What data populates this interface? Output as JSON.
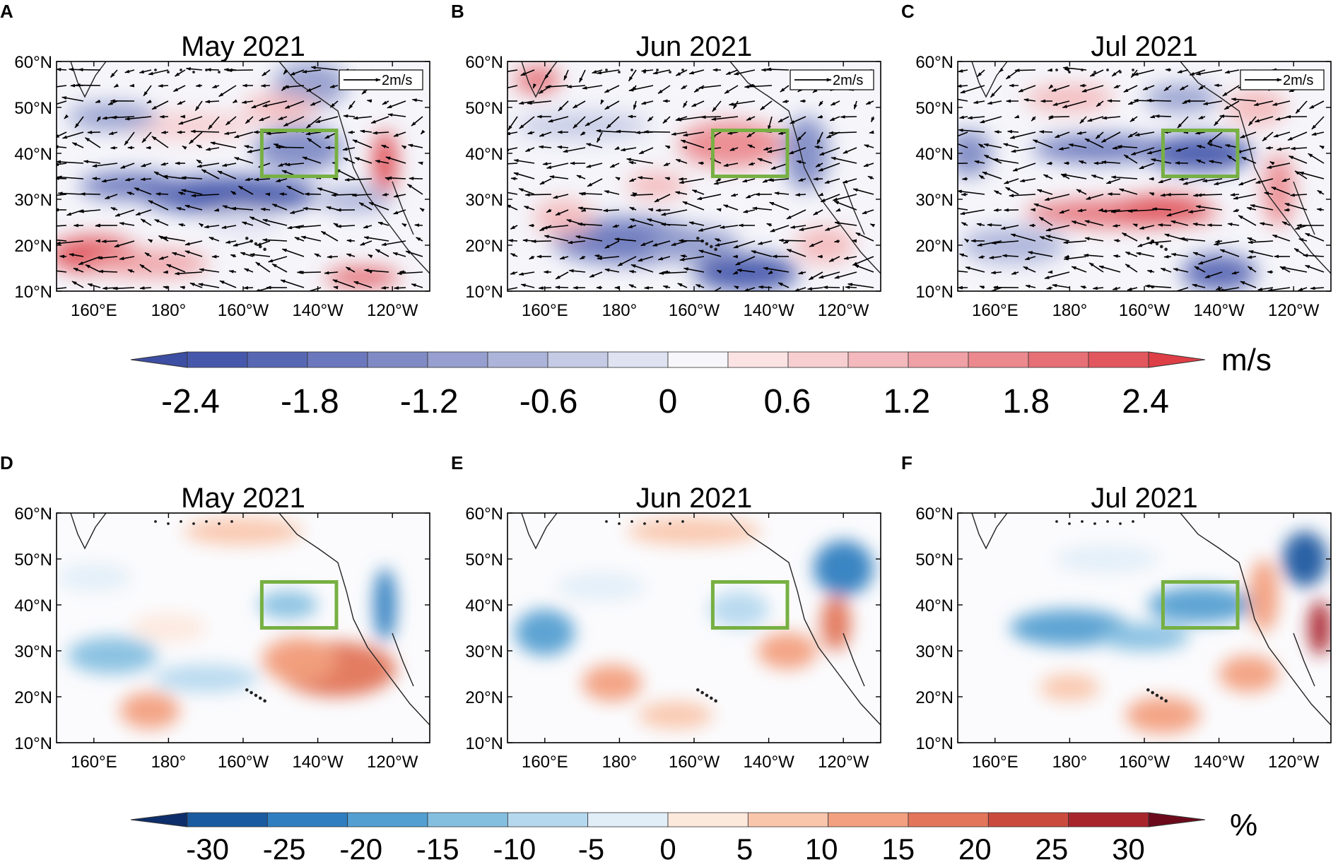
{
  "figure": {
    "rows": [
      {
        "variable": "wind",
        "colorbar": {
          "unit": "m/s",
          "tick_labels": [
            "-2.4",
            "-1.8",
            "-1.2",
            "-0.6",
            "0",
            "0.6",
            "1.2",
            "1.8",
            "2.4"
          ],
          "tick_values": [
            -2.4,
            -1.8,
            -1.2,
            -0.6,
            0,
            0.6,
            1.2,
            1.8,
            2.4
          ],
          "range": [
            -2.7,
            2.7
          ],
          "levels": 18,
          "colors": [
            "#3d4fa3",
            "#4758ac",
            "#5867b4",
            "#6b78bd",
            "#808bc5",
            "#969fcf",
            "#adb4da",
            "#c5cae5",
            "#dfe2f1",
            "#f7f7fb",
            "#fbe3e4",
            "#f7cfd1",
            "#f3b9bc",
            "#efa1a5",
            "#eb898e",
            "#e67076",
            "#e2575e",
            "#de3f46"
          ]
        },
        "panels": [
          {
            "letter": "A",
            "title": "May 2021",
            "legend_label": "2m/s"
          },
          {
            "letter": "B",
            "title": "Jun 2021",
            "legend_label": "2m/s"
          },
          {
            "letter": "C",
            "title": "Jul 2021",
            "legend_label": "2m/s"
          }
        ]
      },
      {
        "variable": "percent",
        "colorbar": {
          "unit": "%",
          "tick_labels": [
            "-30",
            "-25",
            "-20",
            "-15",
            "-10",
            "-5",
            "0",
            "5",
            "10",
            "15",
            "20",
            "25",
            "30"
          ],
          "tick_values": [
            -30,
            -25,
            -20,
            -15,
            -10,
            -5,
            0,
            5,
            10,
            15,
            20,
            25,
            30
          ],
          "range": [
            -35,
            35
          ],
          "levels": 14,
          "colors": [
            "#0d2e6b",
            "#1a5aa0",
            "#2f7ec0",
            "#549fd1",
            "#85bfe0",
            "#b5d8ee",
            "#e1eef8",
            "#fde8dc",
            "#f9c6ac",
            "#f2a080",
            "#e2755a",
            "#cb4a3e",
            "#a9252c",
            "#6c0a1c"
          ]
        },
        "panels": [
          {
            "letter": "D",
            "title": "May 2021"
          },
          {
            "letter": "E",
            "title": "Jun 2021"
          },
          {
            "letter": "F",
            "title": "Jul 2021"
          }
        ]
      }
    ],
    "map_axes": {
      "lat_labels": [
        "60°N",
        "50°N",
        "40°N",
        "30°N",
        "20°N",
        "10°N"
      ],
      "lat_values": [
        60,
        50,
        40,
        30,
        20,
        10
      ],
      "lon_labels": [
        "160°E",
        "180°",
        "160°W",
        "140°W",
        "120°W"
      ],
      "lon_values": [
        160,
        180,
        200,
        220,
        240
      ],
      "lon_range": [
        150,
        250
      ],
      "lat_range": [
        10,
        60
      ]
    },
    "study_box": {
      "lon": [
        205,
        225
      ],
      "lat": [
        35,
        45
      ],
      "color": "#77b043"
    }
  }
}
